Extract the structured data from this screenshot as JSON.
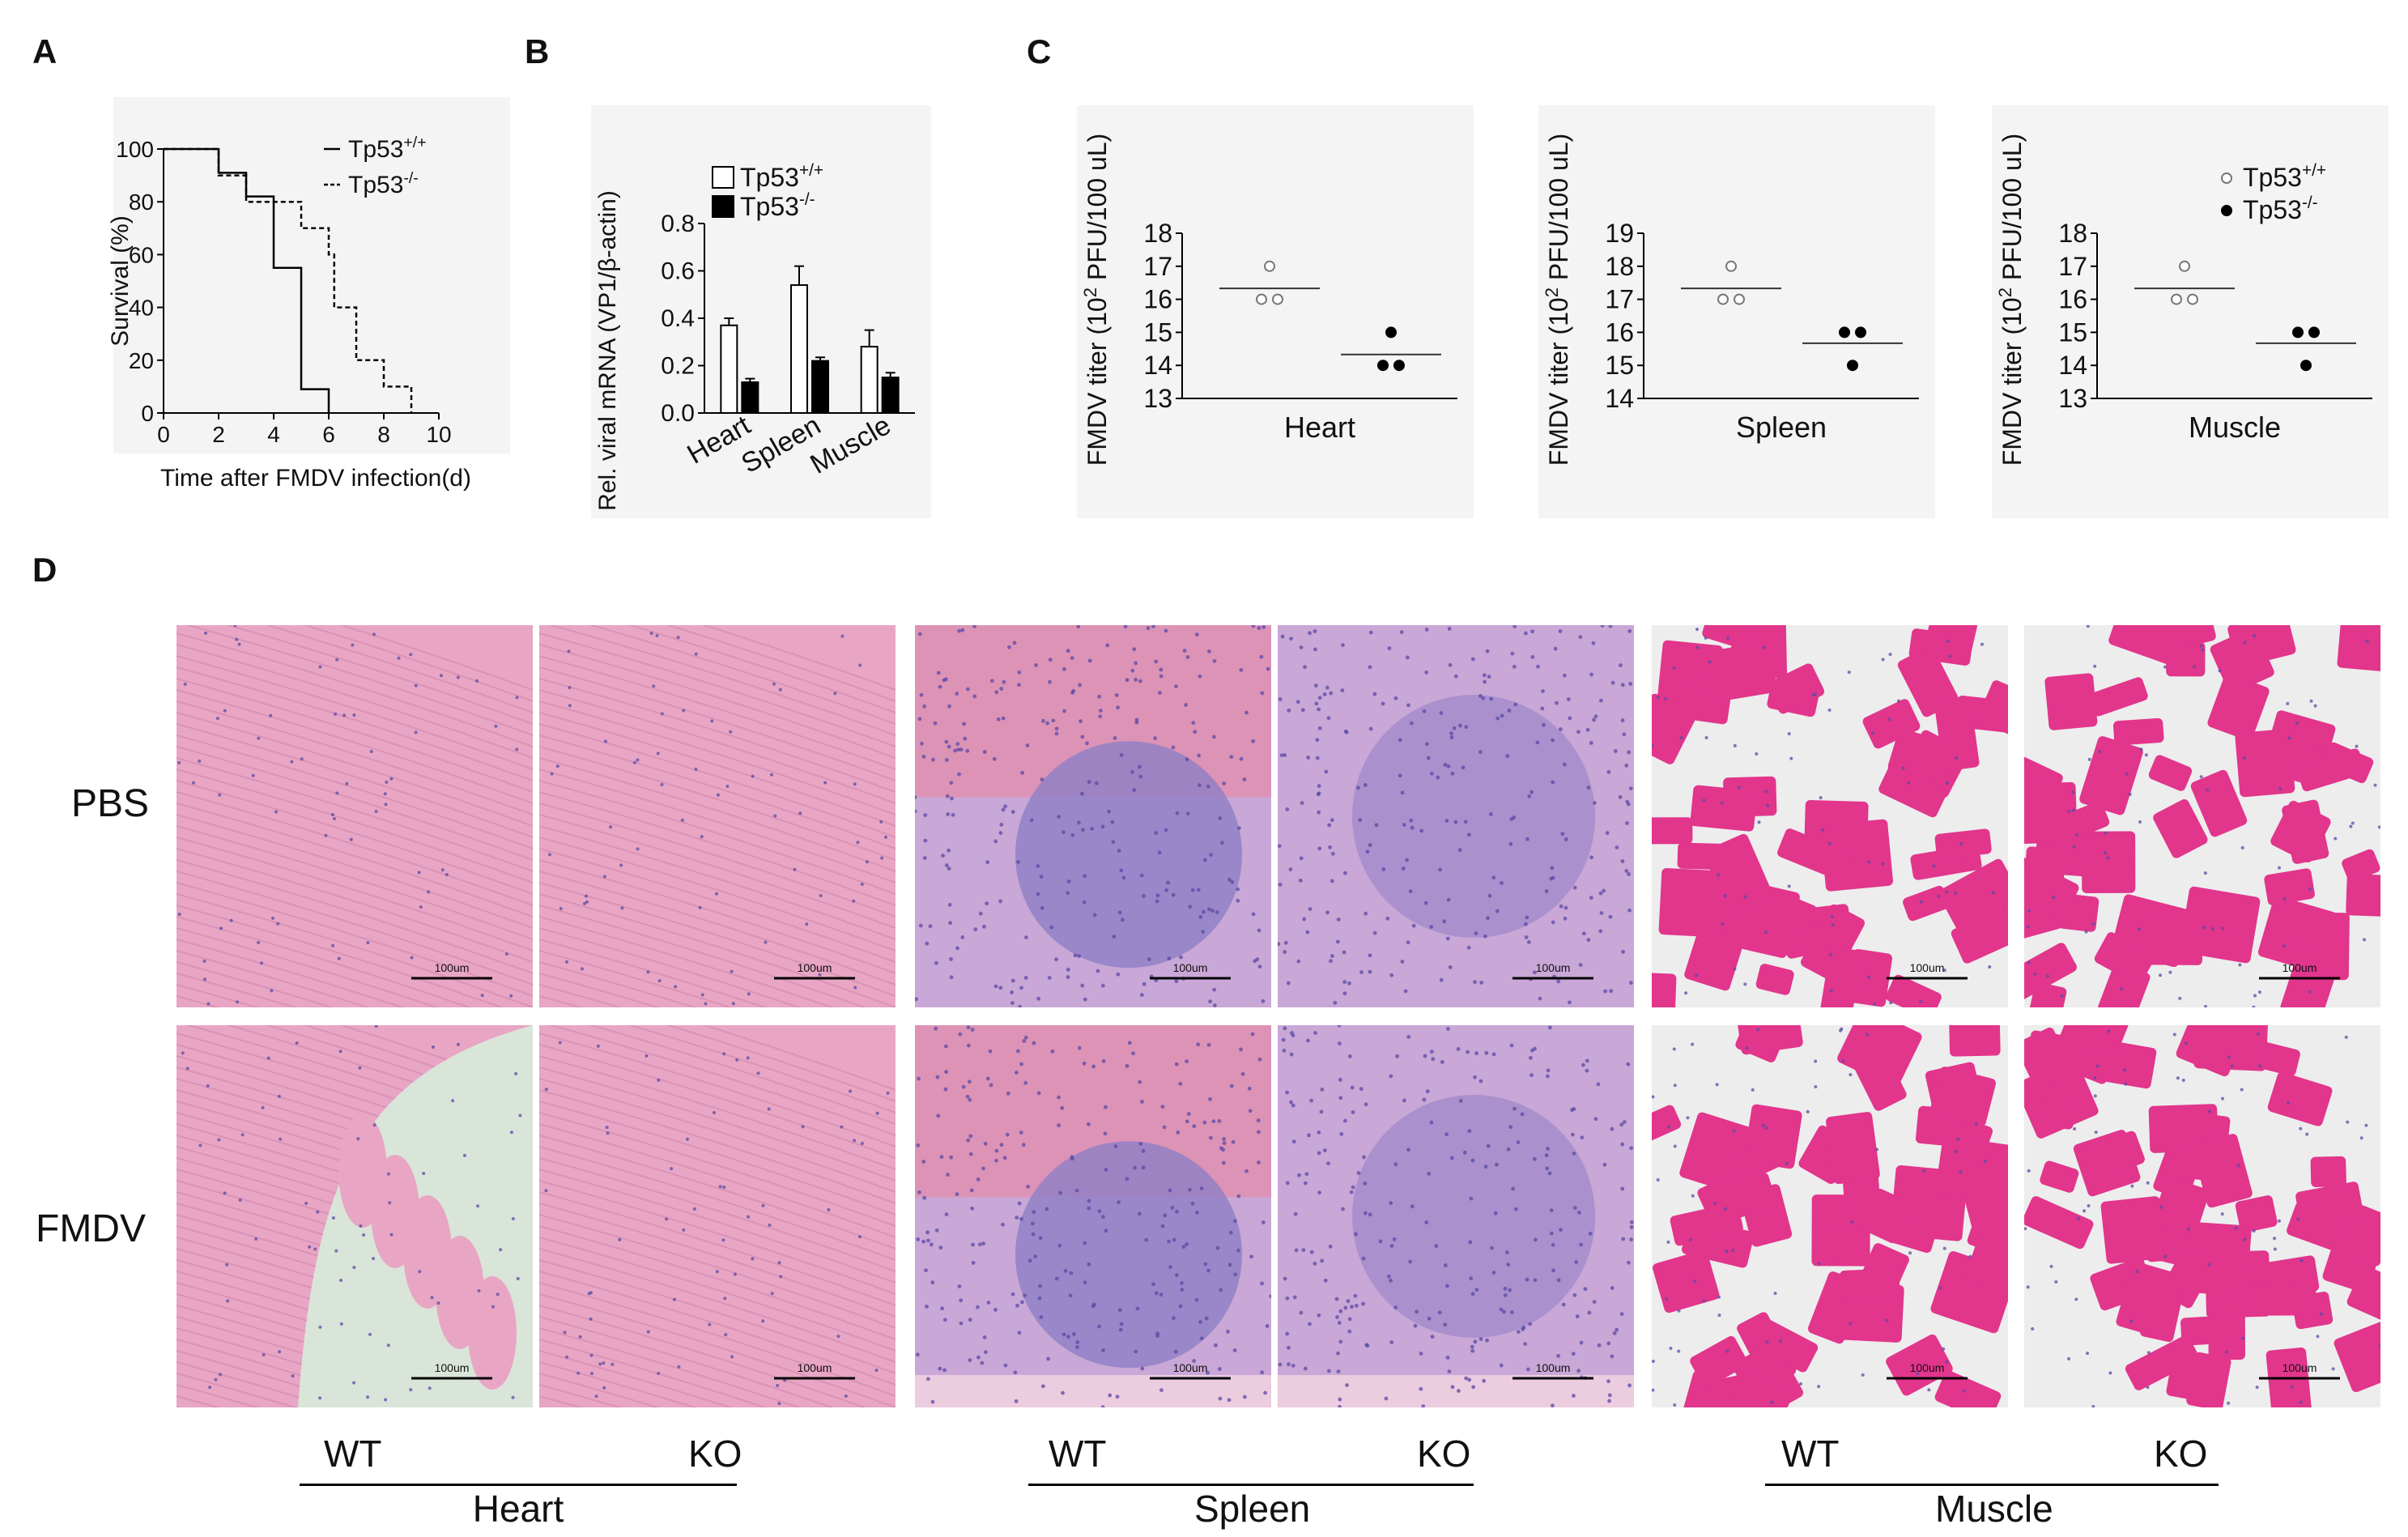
{
  "panels": {
    "A": {
      "letter": "A",
      "chart_data": {
        "type": "line",
        "step": true,
        "ylabel": "Survival (%)",
        "xlabel": "Time after FMDV infection(d)",
        "xlim": [
          0,
          10
        ],
        "ylim": [
          0,
          100
        ],
        "xticks": [
          "0",
          "2",
          "4",
          "6",
          "8",
          "10"
        ],
        "yticks": [
          "0",
          "20",
          "40",
          "60",
          "80",
          "100"
        ],
        "legend_position": "top-right",
        "series": [
          {
            "name": "Tp53+/+",
            "style": "solid",
            "points": [
              [
                0,
                100
              ],
              [
                2,
                100
              ],
              [
                2,
                91
              ],
              [
                3,
                91
              ],
              [
                3,
                82
              ],
              [
                4,
                82
              ],
              [
                4,
                55
              ],
              [
                5,
                55
              ],
              [
                5,
                9
              ],
              [
                6,
                9
              ],
              [
                6,
                0
              ]
            ]
          },
          {
            "name": "Tp53-/-",
            "style": "dashed",
            "points": [
              [
                0,
                100
              ],
              [
                2,
                100
              ],
              [
                2,
                90
              ],
              [
                3,
                90
              ],
              [
                3,
                80
              ],
              [
                5,
                80
              ],
              [
                5,
                70
              ],
              [
                6,
                70
              ],
              [
                6,
                60
              ],
              [
                6.2,
                60
              ],
              [
                6.2,
                40
              ],
              [
                7,
                40
              ],
              [
                7,
                20
              ],
              [
                8,
                20
              ],
              [
                8,
                10
              ],
              [
                9,
                10
              ],
              [
                9,
                0
              ]
            ]
          }
        ]
      }
    },
    "B": {
      "letter": "B",
      "chart_data": {
        "type": "bar",
        "ylabel": "Rel. viral mRNA (VP1/β-actin)",
        "categories": [
          "Heart",
          "Spleen",
          "Muscle"
        ],
        "ylim": [
          0,
          0.8
        ],
        "yticks": [
          "0.0",
          "0.2",
          "0.4",
          "0.6",
          "0.8"
        ],
        "legend_position": "top-right",
        "series": [
          {
            "name": "Tp53+/+",
            "fill": "#ffffff",
            "values": [
              0.37,
              0.54,
              0.28
            ],
            "errors": [
              0.03,
              0.08,
              0.07
            ]
          },
          {
            "name": "Tp53-/-",
            "fill": "#000000",
            "values": [
              0.13,
              0.22,
              0.15
            ],
            "errors": [
              0.015,
              0.015,
              0.02
            ]
          }
        ]
      }
    },
    "C": {
      "letter": "C",
      "chart_data": [
        {
          "type": "scatter",
          "xlabel": "Heart",
          "ylabel": "FMDV titer (10² PFU/100 uL)",
          "ylim": [
            13,
            18
          ],
          "yticks": [
            "13",
            "14",
            "15",
            "16",
            "17",
            "18"
          ],
          "series": [
            {
              "name": "Tp53+/+",
              "marker": "open",
              "values": [
                17.0,
                16.0,
                16.0
              ],
              "mean": 16.33
            },
            {
              "name": "Tp53-/-",
              "marker": "filled",
              "values": [
                15.0,
                14.0,
                14.0
              ],
              "mean": 14.33
            }
          ]
        },
        {
          "type": "scatter",
          "xlabel": "Spleen",
          "ylabel": "FMDV titer (10² PFU/100 uL)",
          "ylim": [
            14,
            19
          ],
          "yticks": [
            "14",
            "15",
            "16",
            "17",
            "18",
            "19"
          ],
          "series": [
            {
              "name": "Tp53+/+",
              "marker": "open",
              "values": [
                18.0,
                17.0,
                17.0
              ],
              "mean": 17.33
            },
            {
              "name": "Tp53-/-",
              "marker": "filled",
              "values": [
                16.0,
                16.0,
                15.0
              ],
              "mean": 15.67
            }
          ]
        },
        {
          "type": "scatter",
          "xlabel": "Muscle",
          "ylabel": "FMDV titer (10² PFU/100 uL)",
          "ylim": [
            13,
            18
          ],
          "yticks": [
            "13",
            "14",
            "15",
            "16",
            "17",
            "18"
          ],
          "legend_position": "top-right",
          "series": [
            {
              "name": "Tp53+/+",
              "marker": "open",
              "values": [
                17.0,
                16.0,
                16.0
              ],
              "mean": 16.33
            },
            {
              "name": "Tp53-/-",
              "marker": "filled",
              "values": [
                15.0,
                15.0,
                14.0
              ],
              "mean": 14.67
            }
          ]
        }
      ]
    },
    "D": {
      "letter": "D",
      "row_labels": [
        "PBS",
        "FMDV"
      ],
      "scale_bar": "100um",
      "groups": [
        {
          "name": "Heart",
          "wt": "WT",
          "ko": "KO"
        },
        {
          "name": "Spleen",
          "wt": "WT",
          "ko": "KO"
        },
        {
          "name": "Muscle",
          "wt": "WT",
          "ko": "KO"
        }
      ],
      "colors": {
        "heart_bg": "#e8a6c4",
        "heart_line": "#d48ab0",
        "spleen_bg": "#c9a7d6",
        "spleen_dense": "#8f7fc6",
        "spleen_red": "#e68aa8",
        "muscle_fiber": "#e2358c",
        "muscle_gap": "#ededed",
        "nuclei": "#5a4aa6"
      }
    }
  }
}
